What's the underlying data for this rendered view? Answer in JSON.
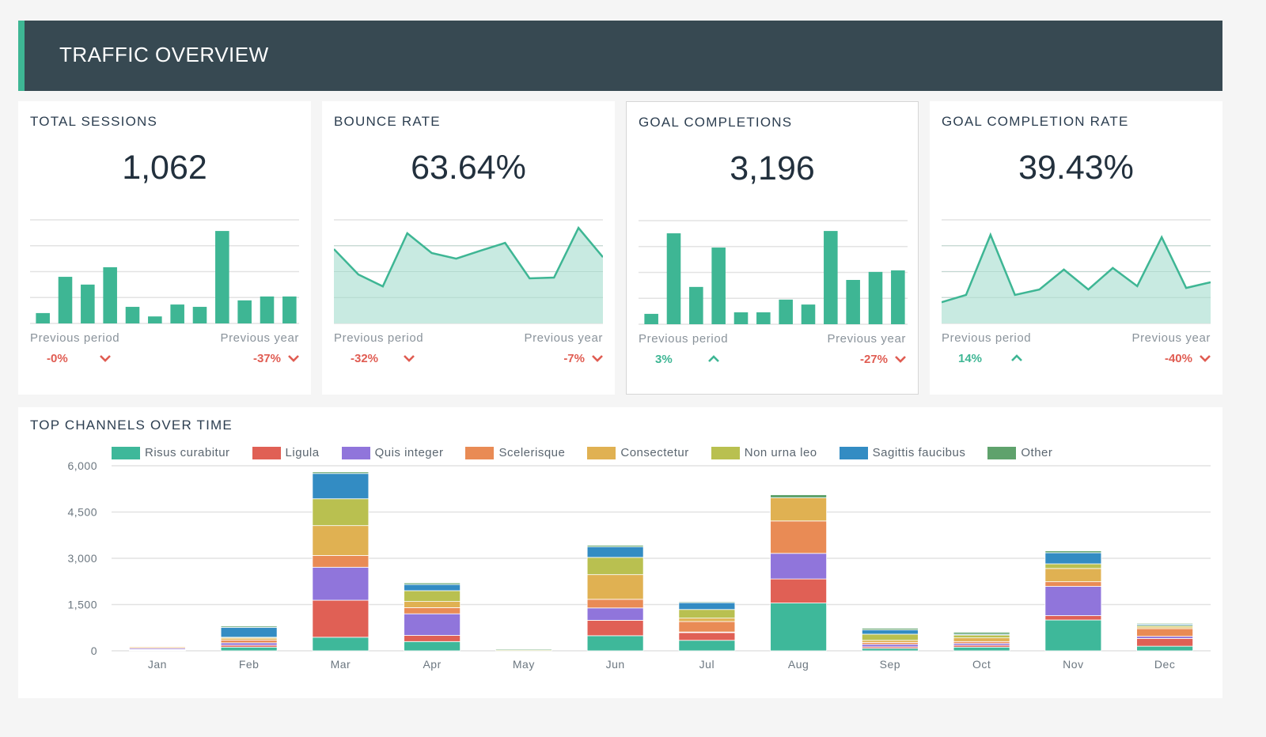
{
  "header": {
    "title": "TRAFFIC OVERVIEW"
  },
  "colors": {
    "accent": "#3eb694",
    "negative": "#e05c52",
    "positive": "#3eb694",
    "header_bg": "#374952",
    "spark_fill": "#c5e9df"
  },
  "cards": [
    {
      "title": "TOTAL SESSIONS",
      "value": "1,062",
      "spark_type": "bar",
      "spark_values": [
        0.4,
        1.8,
        1.5,
        2.17,
        0.64,
        0.27,
        0.73,
        0.64,
        3.57,
        0.89,
        1.04,
        1.04
      ],
      "prev_period_label": "Previous period",
      "prev_year_label": "Previous year",
      "prev_period_delta": "-0%",
      "prev_period_dir": "down",
      "prev_year_delta": "-37%",
      "prev_year_dir": "down",
      "selected": false
    },
    {
      "title": "BOUNCE RATE",
      "value": "63.64%",
      "spark_type": "area",
      "spark_values": [
        2.87,
        1.89,
        1.43,
        3.48,
        2.72,
        2.5,
        2.81,
        3.11,
        1.74,
        1.77,
        3.69,
        2.56
      ],
      "prev_period_label": "Previous period",
      "prev_year_label": "Previous year",
      "prev_period_delta": "-32%",
      "prev_period_dir": "down",
      "prev_year_delta": "-7%",
      "prev_year_dir": "down",
      "selected": false
    },
    {
      "title": "GOAL COMPLETIONS",
      "value": "3,196",
      "spark_type": "bar",
      "spark_values": [
        0.4,
        3.51,
        1.44,
        2.96,
        0.46,
        0.46,
        0.95,
        0.76,
        3.6,
        1.71,
        2.02,
        2.08
      ],
      "prev_period_label": "Previous period",
      "prev_year_label": "Previous year",
      "prev_period_delta": "3%",
      "prev_period_dir": "up",
      "prev_year_delta": "-27%",
      "prev_year_dir": "down",
      "selected": true
    },
    {
      "title": "GOAL COMPLETION RATE",
      "value": "39.43%",
      "spark_type": "area",
      "spark_values": [
        0.82,
        1.1,
        3.42,
        1.1,
        1.31,
        2.08,
        1.31,
        2.14,
        1.44,
        3.33,
        1.37,
        1.59
      ],
      "prev_period_label": "Previous period",
      "prev_year_label": "Previous year",
      "prev_period_delta": "14%",
      "prev_period_dir": "up",
      "prev_year_delta": "-40%",
      "prev_year_dir": "down",
      "selected": false
    }
  ],
  "chart_data": {
    "type": "bar",
    "stacked": true,
    "title": "TOP CHANNELS OVER TIME",
    "xlabel": "",
    "ylabel": "",
    "ylim": [
      0,
      6000
    ],
    "yticks": [
      "0",
      "1,500",
      "3,000",
      "4,500",
      "6,000"
    ],
    "ytick_values": [
      0,
      1500,
      3000,
      4500,
      6000
    ],
    "grid": true,
    "legend_position": "top",
    "categories": [
      "Jan",
      "Feb",
      "Mar",
      "Apr",
      "May",
      "Jun",
      "Jul",
      "Aug",
      "Sep",
      "Oct",
      "Nov",
      "Dec"
    ],
    "series": [
      {
        "name": "Risus curabitur",
        "color": "#3eb89a",
        "values": [
          20,
          120,
          440,
          300,
          0,
          490,
          340,
          1550,
          80,
          120,
          1000,
          150
        ]
      },
      {
        "name": "Ligula",
        "color": "#e06055",
        "values": [
          20,
          60,
          1200,
          200,
          0,
          500,
          250,
          780,
          50,
          60,
          140,
          250
        ]
      },
      {
        "name": "Quis integer",
        "color": "#9075db",
        "values": [
          40,
          80,
          1070,
          700,
          0,
          400,
          20,
          830,
          80,
          60,
          950,
          70
        ]
      },
      {
        "name": "Scelerisque",
        "color": "#e98b55",
        "values": [
          30,
          90,
          380,
          200,
          0,
          280,
          340,
          1050,
          60,
          60,
          150,
          250
        ]
      },
      {
        "name": "Consectetur",
        "color": "#e0b152",
        "values": [
          30,
          60,
          970,
          200,
          0,
          800,
          110,
          750,
          70,
          120,
          430,
          50
        ]
      },
      {
        "name": "Non urna leo",
        "color": "#b9c050",
        "values": [
          20,
          30,
          870,
          350,
          30,
          560,
          280,
          0,
          200,
          90,
          150,
          50
        ]
      },
      {
        "name": "Sagittis faucibus",
        "color": "#338cc3",
        "values": [
          20,
          320,
          820,
          200,
          0,
          340,
          220,
          0,
          140,
          30,
          360,
          40
        ]
      },
      {
        "name": "Other",
        "color": "#5fa26c",
        "values": [
          10,
          40,
          50,
          50,
          30,
          50,
          30,
          100,
          50,
          60,
          60,
          30
        ]
      }
    ]
  }
}
